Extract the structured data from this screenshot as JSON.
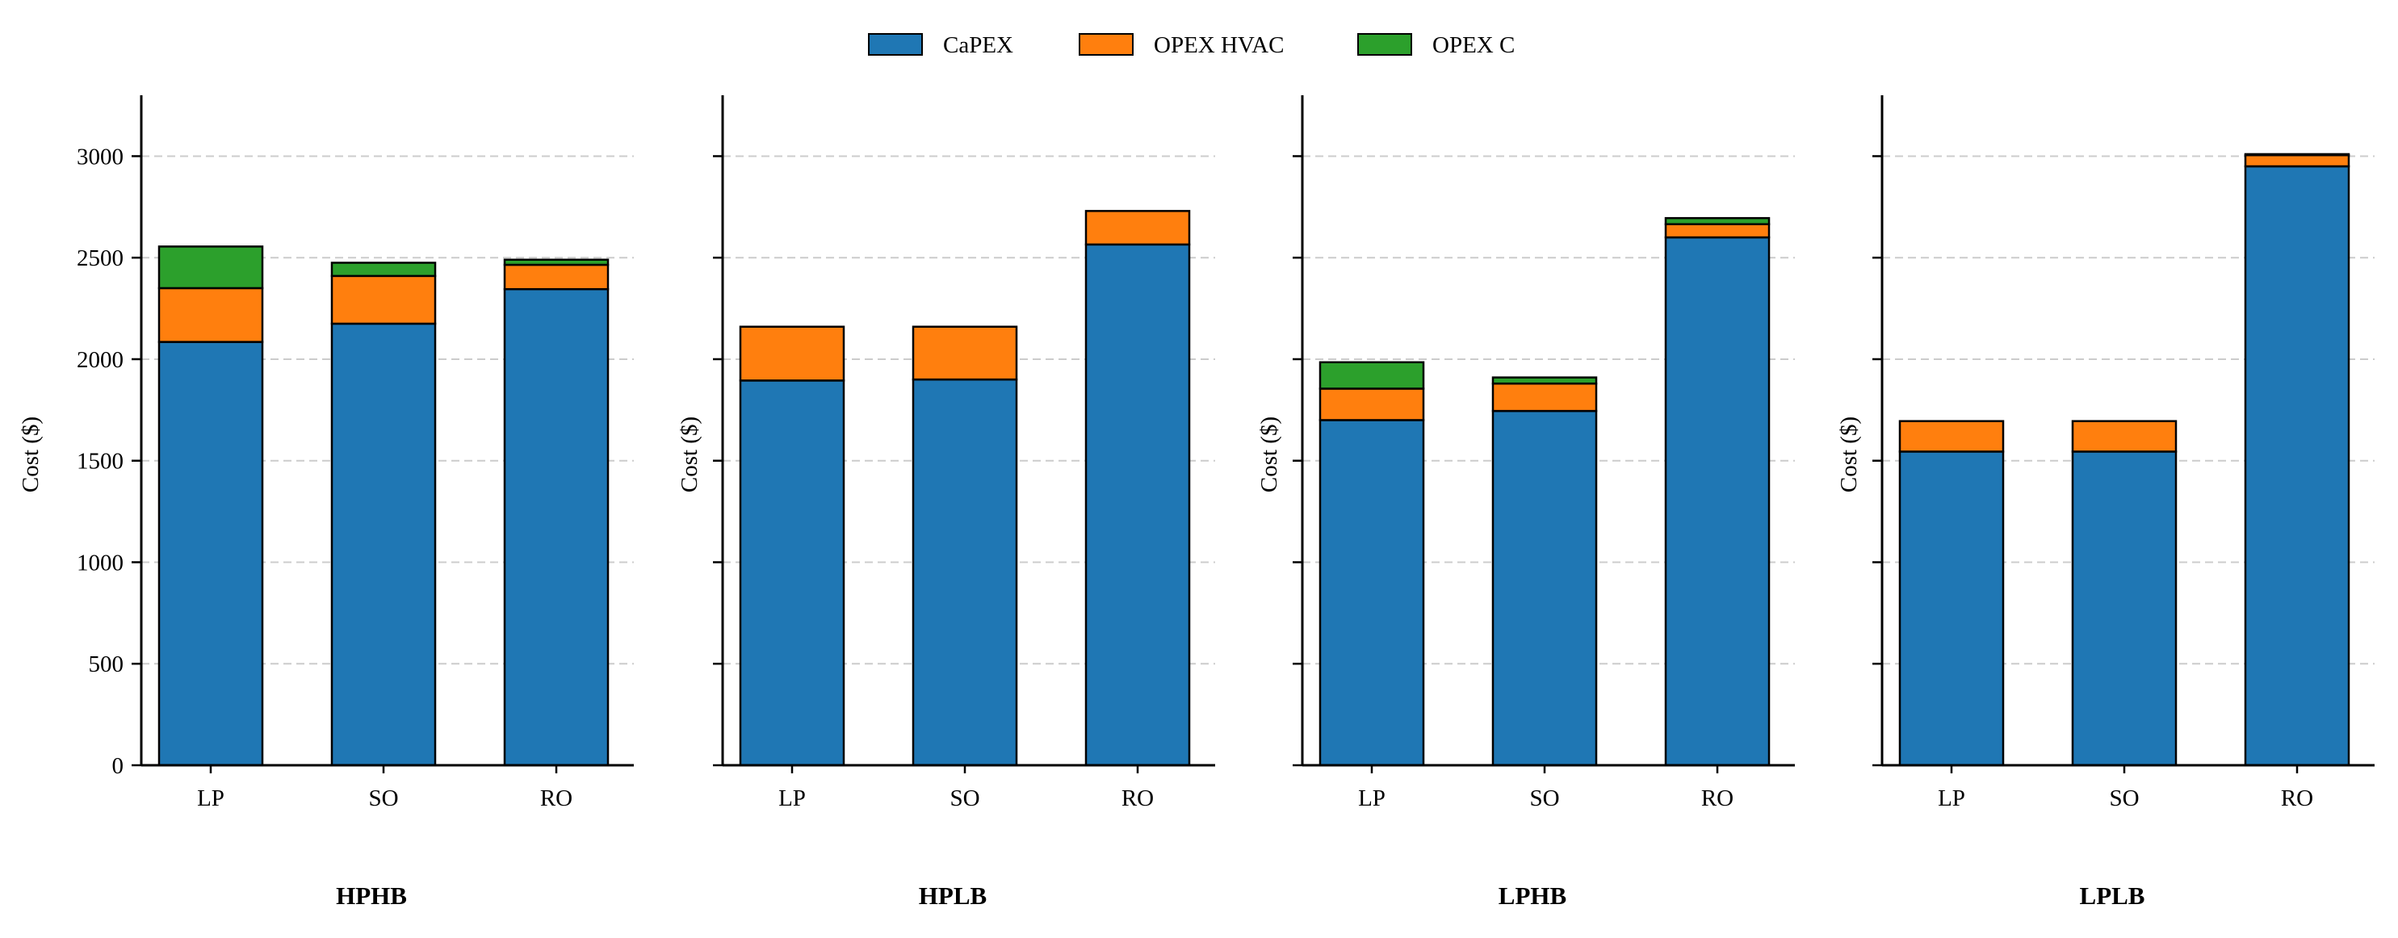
{
  "chart_data": {
    "type": "bar",
    "stacked": true,
    "legend": {
      "placement": "top-center",
      "entries": [
        "CaPEX",
        "OPEX HVAC",
        "OPEX C"
      ]
    },
    "colors": {
      "CaPEX": "#1f77b4",
      "OPEX HVAC": "#ff7f0e",
      "OPEX C": "#2ca02c",
      "edge": "#000000",
      "grid": "#cccccc"
    },
    "grid": "horizontal dashed",
    "ylim": [
      0,
      3300
    ],
    "yticks": [
      0,
      500,
      1000,
      1500,
      2000,
      2500,
      3000
    ],
    "panels": [
      {
        "title": "HPHB",
        "ylabel": "Cost ($)",
        "categories": [
          "LP",
          "SO",
          "RO"
        ],
        "series": [
          {
            "name": "CaPEX",
            "values": [
              2085,
              2175,
              2345
            ]
          },
          {
            "name": "OPEX HVAC",
            "values": [
              265,
              235,
              120
            ]
          },
          {
            "name": "OPEX C",
            "values": [
              205,
              65,
              25
            ]
          }
        ]
      },
      {
        "title": "HPLB",
        "ylabel": "Cost ($)",
        "categories": [
          "LP",
          "SO",
          "RO"
        ],
        "series": [
          {
            "name": "CaPEX",
            "values": [
              1895,
              1900,
              2565
            ]
          },
          {
            "name": "OPEX HVAC",
            "values": [
              265,
              260,
              165
            ]
          },
          {
            "name": "OPEX C",
            "values": [
              0,
              0,
              0
            ]
          }
        ]
      },
      {
        "title": "LPHB",
        "ylabel": "Cost ($)",
        "categories": [
          "LP",
          "SO",
          "RO"
        ],
        "series": [
          {
            "name": "CaPEX",
            "values": [
              1700,
              1745,
              2600
            ]
          },
          {
            "name": "OPEX HVAC",
            "values": [
              155,
              135,
              65
            ]
          },
          {
            "name": "OPEX C",
            "values": [
              130,
              30,
              30
            ]
          }
        ]
      },
      {
        "title": "LPLB",
        "ylabel": "Cost ($)",
        "categories": [
          "LP",
          "SO",
          "RO"
        ],
        "series": [
          {
            "name": "CaPEX",
            "values": [
              1545,
              1545,
              2950
            ]
          },
          {
            "name": "OPEX HVAC",
            "values": [
              150,
              150,
              55
            ]
          },
          {
            "name": "OPEX C",
            "values": [
              0,
              0,
              5
            ]
          }
        ]
      }
    ]
  }
}
